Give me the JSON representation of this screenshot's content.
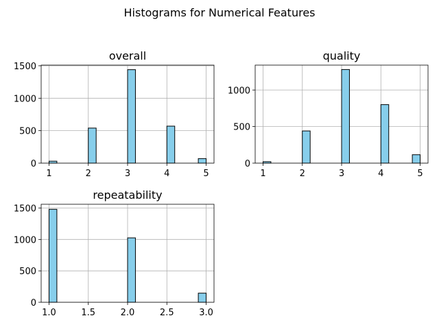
{
  "figure_title": "Histograms for Numerical Features",
  "chart_data": [
    {
      "type": "bar",
      "title": "overall",
      "xlabel": "",
      "ylabel": "",
      "bar_color": "#87ceeb",
      "edge_color": "#000000",
      "bins": 20,
      "xlim": [
        0.8,
        5.2
      ],
      "ylim": [
        0,
        1510
      ],
      "x": [
        1,
        2,
        3,
        4,
        5
      ],
      "values": [
        30,
        540,
        1440,
        570,
        70
      ],
      "xticks": [
        "1",
        "2",
        "3",
        "4",
        "5"
      ],
      "xtick_values": [
        1,
        2,
        3,
        4,
        5
      ],
      "yticks": [
        "0",
        "500",
        "1000",
        "1500"
      ],
      "ytick_values": [
        0,
        500,
        1000,
        1500
      ],
      "grid": true
    },
    {
      "type": "bar",
      "title": "quality",
      "xlabel": "",
      "ylabel": "",
      "bar_color": "#87ceeb",
      "edge_color": "#000000",
      "bins": 20,
      "xlim": [
        0.8,
        5.2
      ],
      "ylim": [
        0,
        1340
      ],
      "x": [
        1,
        2,
        3,
        4,
        5
      ],
      "values": [
        20,
        440,
        1280,
        800,
        115
      ],
      "xticks": [
        "1",
        "2",
        "3",
        "4",
        "5"
      ],
      "xtick_values": [
        1,
        2,
        3,
        4,
        5
      ],
      "yticks": [
        "0",
        "500",
        "1000"
      ],
      "ytick_values": [
        0,
        500,
        1000
      ],
      "grid": true
    },
    {
      "type": "bar",
      "title": "repeatability",
      "xlabel": "",
      "ylabel": "",
      "bar_color": "#87ceeb",
      "edge_color": "#000000",
      "bins": 20,
      "xlim": [
        0.9,
        3.1
      ],
      "ylim": [
        0,
        1560
      ],
      "x": [
        1,
        2,
        3
      ],
      "values": [
        1480,
        1025,
        145
      ],
      "xticks": [
        "1.0",
        "1.5",
        "2.0",
        "2.5",
        "3.0"
      ],
      "xtick_values": [
        1.0,
        1.5,
        2.0,
        2.5,
        3.0
      ],
      "yticks": [
        "0",
        "500",
        "1000",
        "1500"
      ],
      "ytick_values": [
        0,
        500,
        1000,
        1500
      ],
      "grid": true
    }
  ]
}
